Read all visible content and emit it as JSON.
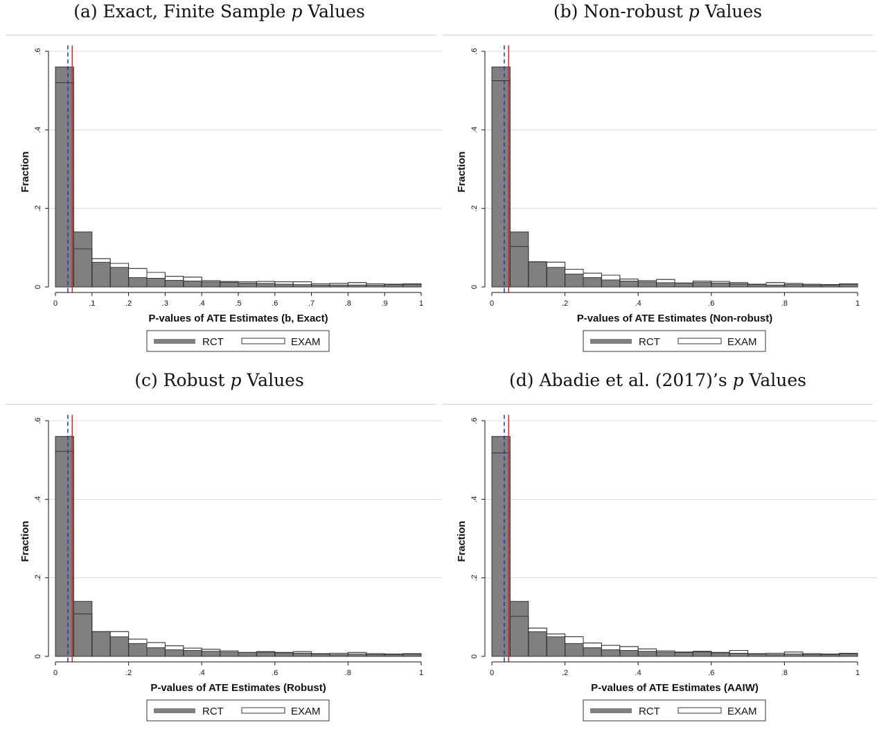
{
  "colors": {
    "rct": "#808080",
    "exam": "#ffffff",
    "outline": "#333333",
    "grid": "#d9d9d9",
    "red_line": "#e02020",
    "blue_dash": "#2a2acc"
  },
  "legend": {
    "rct": "RCT",
    "exam": "EXAM"
  },
  "chart_data": [
    {
      "type": "bar",
      "panel_title_prefix": "(a) Exact, Finite Sample",
      "panel_title_var": "p",
      "panel_title_suffix": "Values",
      "xlabel": "P-values of ATE Estimates (b, Exact)",
      "ylabel": "Fraction",
      "xlim": [
        0,
        1
      ],
      "ylim": [
        0,
        0.6
      ],
      "xticks": [
        0,
        0.1,
        0.2,
        0.3,
        0.4,
        0.5,
        0.6,
        0.7,
        0.8,
        0.9,
        1
      ],
      "xtick_labels": [
        "0",
        ".1",
        ".2",
        ".3",
        ".4",
        ".5",
        ".6",
        ".7",
        ".8",
        ".9",
        "1"
      ],
      "yticks": [
        0,
        0.2,
        0.4,
        0.6
      ],
      "ytick_labels": [
        "0",
        ".2",
        ".4",
        ".6"
      ],
      "bin_width": 0.05,
      "series": [
        {
          "name": "RCT",
          "values": [
            0.56,
            0.14,
            0.063,
            0.05,
            0.024,
            0.022,
            0.017,
            0.015,
            0.013,
            0.012,
            0.01,
            0.009,
            0.007,
            0.006,
            0.005,
            0.005,
            0.005,
            0.005,
            0.006,
            0.006
          ]
        },
        {
          "name": "EXAM",
          "values": [
            0.52,
            0.097,
            0.072,
            0.06,
            0.047,
            0.037,
            0.027,
            0.025,
            0.016,
            0.014,
            0.013,
            0.014,
            0.013,
            0.013,
            0.008,
            0.009,
            0.011,
            0.008,
            0.007,
            0.008
          ]
        }
      ],
      "ref_lines": {
        "red": 0.046,
        "blue_dashed": 0.034
      }
    },
    {
      "type": "bar",
      "panel_title_prefix": "(b) Non-robust",
      "panel_title_var": "p",
      "panel_title_suffix": "Values",
      "xlabel": "P-values of ATE Estimates (Non-robust)",
      "ylabel": "Fraction",
      "xlim": [
        0,
        1
      ],
      "ylim": [
        0,
        0.6
      ],
      "xticks": [
        0,
        0.2,
        0.4,
        0.6,
        0.8,
        1
      ],
      "xtick_labels": [
        "0",
        ".2",
        ".4",
        ".6",
        ".8",
        "1"
      ],
      "yticks": [
        0,
        0.2,
        0.4,
        0.6
      ],
      "ytick_labels": [
        "0",
        ".2",
        ".4",
        ".6"
      ],
      "bin_width": 0.05,
      "series": [
        {
          "name": "RCT",
          "values": [
            0.56,
            0.14,
            0.064,
            0.05,
            0.033,
            0.024,
            0.018,
            0.015,
            0.013,
            0.011,
            0.01,
            0.012,
            0.01,
            0.008,
            0.006,
            0.005,
            0.006,
            0.005,
            0.005,
            0.006
          ]
        },
        {
          "name": "EXAM",
          "values": [
            0.525,
            0.103,
            0.064,
            0.063,
            0.045,
            0.035,
            0.03,
            0.02,
            0.016,
            0.019,
            0.01,
            0.015,
            0.014,
            0.011,
            0.007,
            0.011,
            0.009,
            0.007,
            0.006,
            0.008
          ]
        }
      ],
      "ref_lines": {
        "red": 0.046,
        "blue_dashed": 0.034
      }
    },
    {
      "type": "bar",
      "panel_title_prefix": "(c) Robust",
      "panel_title_var": "p",
      "panel_title_suffix": "Values",
      "xlabel": "P-values of ATE Estimates (Robust)",
      "ylabel": "Fraction",
      "xlim": [
        0,
        1
      ],
      "ylim": [
        0,
        0.6
      ],
      "xticks": [
        0,
        0.2,
        0.4,
        0.6,
        0.8,
        1
      ],
      "xtick_labels": [
        "0",
        ".2",
        ".4",
        ".6",
        ".8",
        "1"
      ],
      "yticks": [
        0,
        0.2,
        0.4,
        0.6
      ],
      "ytick_labels": [
        "0",
        ".2",
        ".4",
        ".6"
      ],
      "bin_width": 0.05,
      "series": [
        {
          "name": "RCT",
          "values": [
            0.56,
            0.14,
            0.063,
            0.05,
            0.033,
            0.022,
            0.017,
            0.015,
            0.013,
            0.011,
            0.01,
            0.011,
            0.009,
            0.008,
            0.006,
            0.005,
            0.006,
            0.005,
            0.005,
            0.006
          ]
        },
        {
          "name": "EXAM",
          "values": [
            0.522,
            0.108,
            0.063,
            0.063,
            0.044,
            0.035,
            0.027,
            0.021,
            0.018,
            0.014,
            0.01,
            0.012,
            0.01,
            0.012,
            0.007,
            0.008,
            0.01,
            0.007,
            0.006,
            0.007
          ]
        }
      ],
      "ref_lines": {
        "red": 0.046,
        "blue_dashed": 0.034
      }
    },
    {
      "type": "bar",
      "panel_title_prefix": "(d) Abadie et al. (2017)’s",
      "panel_title_var": "p",
      "panel_title_suffix": "Values",
      "xlabel": "P-values of ATE Estimates (AAIW)",
      "ylabel": "Fraction",
      "xlim": [
        0,
        1
      ],
      "ylim": [
        0,
        0.6
      ],
      "xticks": [
        0,
        0.2,
        0.4,
        0.6,
        0.8,
        1
      ],
      "xtick_labels": [
        "0",
        ".2",
        ".4",
        ".6",
        ".8",
        "1"
      ],
      "yticks": [
        0,
        0.2,
        0.4,
        0.6
      ],
      "ytick_labels": [
        "0",
        ".2",
        ".4",
        ".6"
      ],
      "bin_width": 0.05,
      "series": [
        {
          "name": "RCT",
          "values": [
            0.56,
            0.14,
            0.063,
            0.05,
            0.033,
            0.022,
            0.017,
            0.015,
            0.013,
            0.011,
            0.01,
            0.011,
            0.009,
            0.008,
            0.006,
            0.005,
            0.006,
            0.005,
            0.005,
            0.006
          ]
        },
        {
          "name": "EXAM",
          "values": [
            0.518,
            0.102,
            0.072,
            0.057,
            0.05,
            0.034,
            0.028,
            0.025,
            0.019,
            0.014,
            0.011,
            0.013,
            0.01,
            0.015,
            0.007,
            0.008,
            0.011,
            0.007,
            0.006,
            0.008
          ]
        }
      ],
      "ref_lines": {
        "red": 0.046,
        "blue_dashed": 0.034
      }
    }
  ]
}
